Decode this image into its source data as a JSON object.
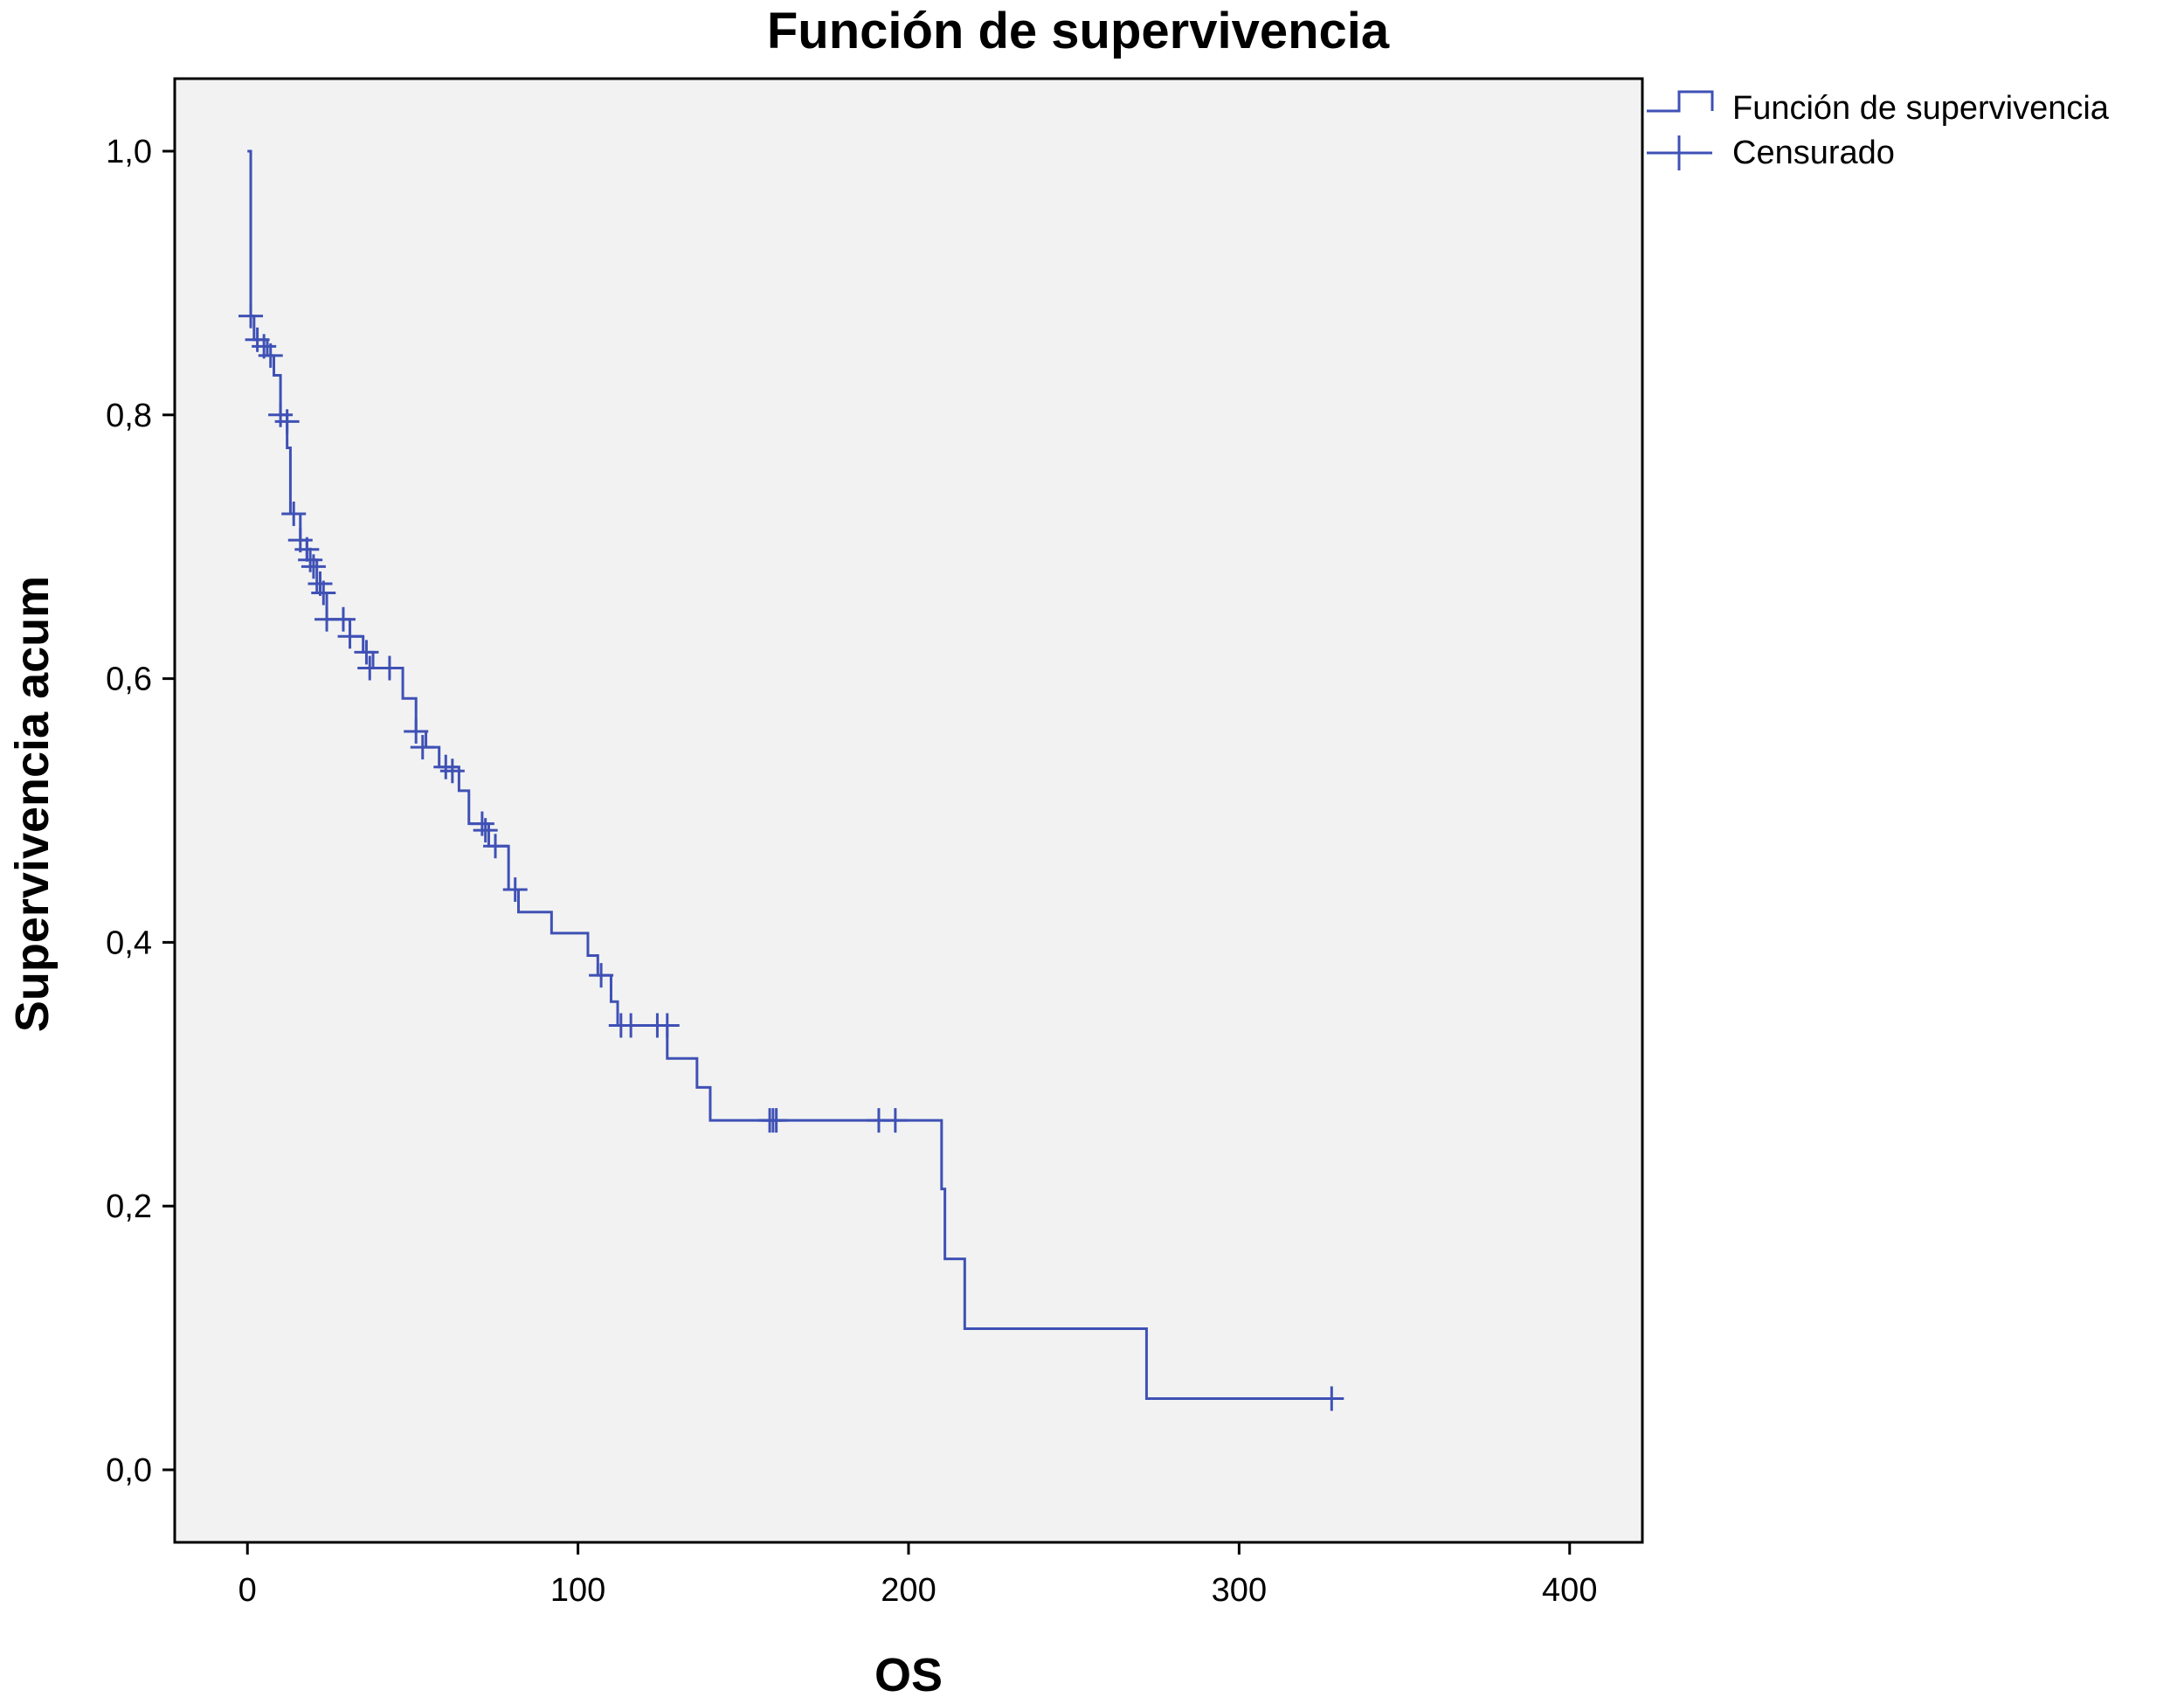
{
  "chart_data": {
    "type": "line",
    "title": "Función de supervivencia",
    "xlabel": "OS",
    "ylabel": "Supervivencia acum",
    "xlim": [
      -22,
      422
    ],
    "ylim": [
      -0.055,
      1.055
    ],
    "x_ticks": [
      0,
      100,
      200,
      300,
      400
    ],
    "x_tick_labels": [
      "0",
      "100",
      "200",
      "300",
      "400"
    ],
    "y_ticks": [
      0.0,
      0.2,
      0.4,
      0.6,
      0.8,
      1.0
    ],
    "y_tick_labels": [
      "0,0",
      "0,2",
      "0,4",
      "0,6",
      "0,8",
      "1,0"
    ],
    "grid": false,
    "legend_position": "outside-top-right",
    "colors": {
      "line": "#3f51b5",
      "plot_bg": "#f2f2f2",
      "frame": "#000000"
    },
    "legend": [
      {
        "label": "Función de supervivencia",
        "symbol": "step"
      },
      {
        "label": "Censurado",
        "symbol": "cross"
      }
    ],
    "series": [
      {
        "name": "Función de supervivencia",
        "style": "step",
        "points": [
          [
            0,
            1.0
          ],
          [
            1,
            0.875
          ],
          [
            2,
            0.857
          ],
          [
            6,
            0.845
          ],
          [
            8,
            0.83
          ],
          [
            10,
            0.8
          ],
          [
            12,
            0.775
          ],
          [
            13,
            0.725
          ],
          [
            16,
            0.705
          ],
          [
            18,
            0.69
          ],
          [
            21,
            0.665
          ],
          [
            24,
            0.645
          ],
          [
            31,
            0.632
          ],
          [
            35,
            0.62
          ],
          [
            38,
            0.608
          ],
          [
            47,
            0.585
          ],
          [
            51,
            0.56
          ],
          [
            54,
            0.548
          ],
          [
            58,
            0.533
          ],
          [
            64,
            0.515
          ],
          [
            67,
            0.49
          ],
          [
            73,
            0.473
          ],
          [
            79,
            0.44
          ],
          [
            82,
            0.423
          ],
          [
            92,
            0.407
          ],
          [
            103,
            0.39
          ],
          [
            106,
            0.375
          ],
          [
            110,
            0.355
          ],
          [
            112,
            0.337
          ],
          [
            127,
            0.312
          ],
          [
            136,
            0.29
          ],
          [
            140,
            0.265
          ],
          [
            210,
            0.213
          ],
          [
            211,
            0.16
          ],
          [
            217,
            0.107
          ],
          [
            272,
            0.054
          ],
          [
            328,
            0.054
          ]
        ]
      },
      {
        "name": "Censurado",
        "style": "markers",
        "points": [
          [
            1,
            0.875
          ],
          [
            3,
            0.857
          ],
          [
            5,
            0.852
          ],
          [
            7,
            0.845
          ],
          [
            10,
            0.8
          ],
          [
            12,
            0.795
          ],
          [
            14,
            0.725
          ],
          [
            16,
            0.705
          ],
          [
            18,
            0.698
          ],
          [
            19,
            0.69
          ],
          [
            20,
            0.685
          ],
          [
            22,
            0.672
          ],
          [
            23,
            0.665
          ],
          [
            24,
            0.645
          ],
          [
            29,
            0.645
          ],
          [
            31,
            0.632
          ],
          [
            36,
            0.62
          ],
          [
            37,
            0.608
          ],
          [
            43,
            0.608
          ],
          [
            51,
            0.56
          ],
          [
            53,
            0.548
          ],
          [
            60,
            0.533
          ],
          [
            62,
            0.53
          ],
          [
            71,
            0.49
          ],
          [
            72,
            0.485
          ],
          [
            75,
            0.473
          ],
          [
            81,
            0.44
          ],
          [
            107,
            0.375
          ],
          [
            113,
            0.337
          ],
          [
            116,
            0.337
          ],
          [
            124,
            0.337
          ],
          [
            127,
            0.337
          ],
          [
            158,
            0.265
          ],
          [
            159,
            0.265
          ],
          [
            160,
            0.265
          ],
          [
            191,
            0.265
          ],
          [
            196,
            0.265
          ],
          [
            328,
            0.054
          ]
        ]
      }
    ]
  }
}
